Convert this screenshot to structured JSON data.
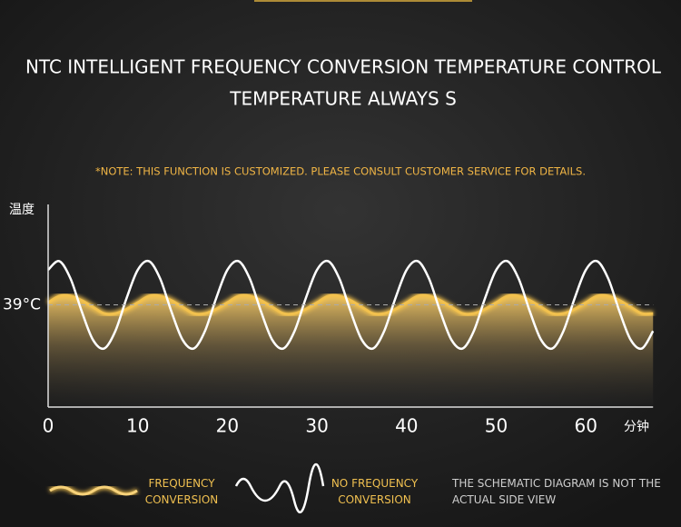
{
  "title_lines": [
    "NTC INTELLIGENT FREQUENCY CONVERSION TEMPERATURE CONTROL",
    "TEMPERATURE ALWAYS S"
  ],
  "note": "*NOTE: THIS FUNCTION IS CUSTOMIZED. PLEASE CONSULT CUSTOMER SERVICE FOR DETAILS.",
  "disclaimer": "THE SCHEMATIC DIAGRAM IS NOT THE ACTUAL SIDE VIEW",
  "chart_data": {
    "type": "line",
    "y_label": "温度",
    "x_label": "分钟",
    "x": [
      0,
      1.25,
      2.5,
      3.75,
      5,
      6.25,
      7.5,
      8.75,
      10,
      11.25,
      12.5,
      13.75,
      15,
      16.25,
      17.5,
      18.75,
      20,
      21.25,
      22.5,
      23.75,
      25,
      26.25,
      27.5,
      28.75,
      30,
      31.25,
      32.5,
      33.75,
      35,
      36.25,
      37.5,
      38.75,
      40,
      41.25,
      42.5,
      43.75,
      45,
      46.25,
      47.5,
      48.75,
      50,
      51.25,
      52.5,
      53.75,
      55,
      56.25,
      57.5,
      58.75,
      60,
      61.25,
      62.5,
      63.75,
      65,
      66.25,
      67.5
    ],
    "series": [
      {
        "name": "FREQUENCY CONVERSION",
        "color": "#f2c14e",
        "values": [
          39.1,
          39.4,
          39.4,
          39.2,
          38.9,
          38.6,
          38.6,
          38.8,
          39.1,
          39.4,
          39.4,
          39.2,
          38.9,
          38.6,
          38.6,
          38.8,
          39.1,
          39.4,
          39.4,
          39.2,
          38.9,
          38.6,
          38.6,
          38.8,
          39.1,
          39.4,
          39.4,
          39.2,
          38.9,
          38.6,
          38.6,
          38.8,
          39.1,
          39.4,
          39.4,
          39.2,
          38.9,
          38.6,
          38.6,
          38.8,
          39.1,
          39.4,
          39.4,
          39.2,
          38.9,
          38.6,
          38.6,
          38.8,
          39.1,
          39.4,
          39.4,
          39.2,
          38.9,
          38.6,
          38.6
        ]
      },
      {
        "name": "NO FREQUENCY CONVERSION",
        "color": "#ffffff",
        "values": [
          40.6,
          41.0,
          40.2,
          38.7,
          37.4,
          37.0,
          37.8,
          39.3,
          40.6,
          41.0,
          40.2,
          38.7,
          37.4,
          37.0,
          37.8,
          39.3,
          40.6,
          41.0,
          40.2,
          38.7,
          37.4,
          37.0,
          37.8,
          39.3,
          40.6,
          41.0,
          40.2,
          38.7,
          37.4,
          37.0,
          37.8,
          39.3,
          40.6,
          41.0,
          40.2,
          38.7,
          37.4,
          37.0,
          37.8,
          39.3,
          40.6,
          41.0,
          40.2,
          38.7,
          37.4,
          37.0,
          37.8,
          39.3,
          40.6,
          41.0,
          40.2,
          38.7,
          37.4,
          37.0,
          37.8
        ]
      }
    ],
    "xlim": [
      0,
      67.5
    ],
    "xticks": [
      0,
      10,
      20,
      30,
      40,
      50,
      60
    ],
    "ylim": [
      34.4,
      43.6
    ],
    "yticks": [
      {
        "value": 39,
        "label": "39°C"
      }
    ],
    "grid": true
  }
}
